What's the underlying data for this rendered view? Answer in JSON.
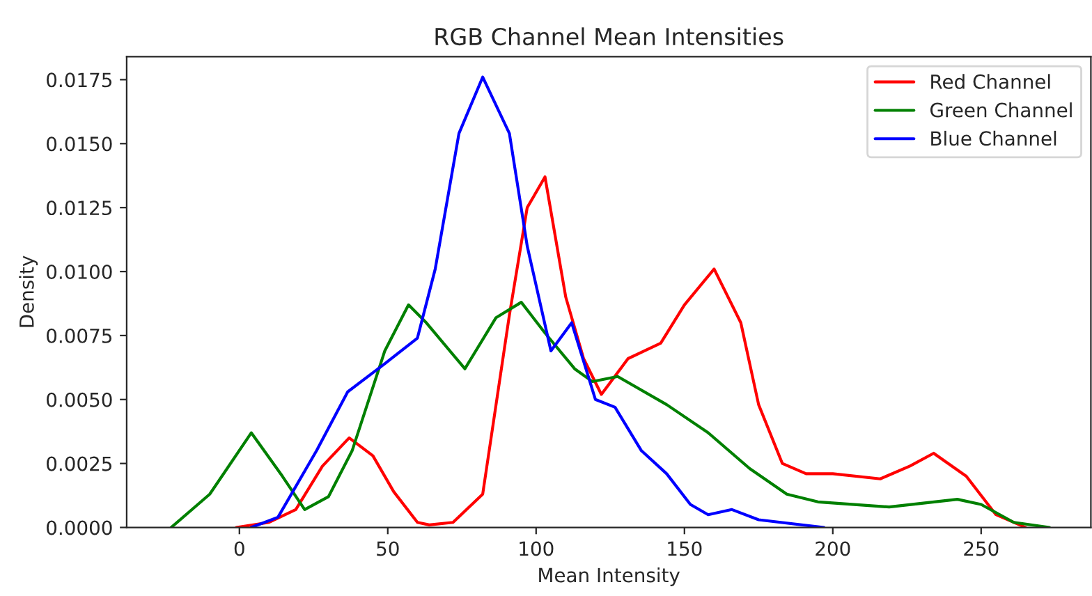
{
  "chart_data": {
    "type": "line",
    "title": "RGB Channel Mean Intensities",
    "xlabel": "Mean Intensity",
    "ylabel": "Density",
    "xlim": [
      -38,
      287
    ],
    "xticks": [
      0,
      50,
      100,
      150,
      200,
      250
    ],
    "ylim": [
      0,
      0.0184
    ],
    "yticks": [
      {
        "value": 0,
        "label": "0.0000"
      },
      {
        "value": 0.0025,
        "label": "0.0025"
      },
      {
        "value": 0.005,
        "label": "0.0050"
      },
      {
        "value": 0.0075,
        "label": "0.0075"
      },
      {
        "value": 0.01,
        "label": "0.0100"
      },
      {
        "value": 0.0125,
        "label": "0.0125"
      },
      {
        "value": 0.015,
        "label": "0.0150"
      },
      {
        "value": 0.0175,
        "label": "0.0175"
      }
    ],
    "legend": "top right",
    "grid": false,
    "series": [
      {
        "name": "Red Channel",
        "color": "#ff0000",
        "x": [
          -1,
          10,
          19,
          28,
          37,
          45,
          52,
          60,
          64,
          72,
          82,
          91,
          97,
          103,
          110,
          116,
          122,
          131,
          142,
          150,
          160,
          169,
          175,
          183,
          191,
          200,
          216,
          226,
          234,
          245,
          255,
          265
        ],
        "values": [
          0,
          0.0002,
          0.0007,
          0.0024,
          0.0035,
          0.0028,
          0.0014,
          0.0002,
          0.0001,
          0.0002,
          0.0013,
          0.0083,
          0.0125,
          0.0137,
          0.009,
          0.0066,
          0.0052,
          0.0066,
          0.0072,
          0.0087,
          0.0101,
          0.008,
          0.0048,
          0.0025,
          0.0021,
          0.0021,
          0.0019,
          0.0024,
          0.0029,
          0.002,
          0.0005,
          0
        ]
      },
      {
        "name": "Green Channel",
        "color": "#008000",
        "x": [
          -23,
          -10,
          4,
          14.5,
          22,
          30,
          38,
          49,
          57,
          63,
          76,
          86.5,
          95,
          103,
          113,
          119,
          127.5,
          144,
          158,
          172,
          184.5,
          195,
          219,
          242,
          250,
          261,
          273
        ],
        "values": [
          0,
          0.0013,
          0.0037,
          0.002,
          0.0007,
          0.0012,
          0.003,
          0.0069,
          0.0087,
          0.008,
          0.0062,
          0.0082,
          0.0088,
          0.0076,
          0.0062,
          0.0057,
          0.0059,
          0.0048,
          0.0037,
          0.0023,
          0.0013,
          0.001,
          0.0008,
          0.0011,
          0.0009,
          0.0002,
          0
        ]
      },
      {
        "name": "Blue Channel",
        "color": "#0000ff",
        "x": [
          4,
          13,
          26,
          36.5,
          49,
          60,
          66,
          74,
          82,
          91,
          97,
          105,
          112,
          120,
          126.6,
          135.5,
          144,
          152,
          158,
          166,
          175,
          197
        ],
        "values": [
          0,
          0.0004,
          0.003,
          0.0053,
          0.0064,
          0.0074,
          0.0101,
          0.0154,
          0.0176,
          0.0154,
          0.011,
          0.0069,
          0.008,
          0.005,
          0.0047,
          0.003,
          0.0021,
          0.0009,
          0.0005,
          0.0007,
          0.0003,
          0
        ]
      }
    ]
  }
}
